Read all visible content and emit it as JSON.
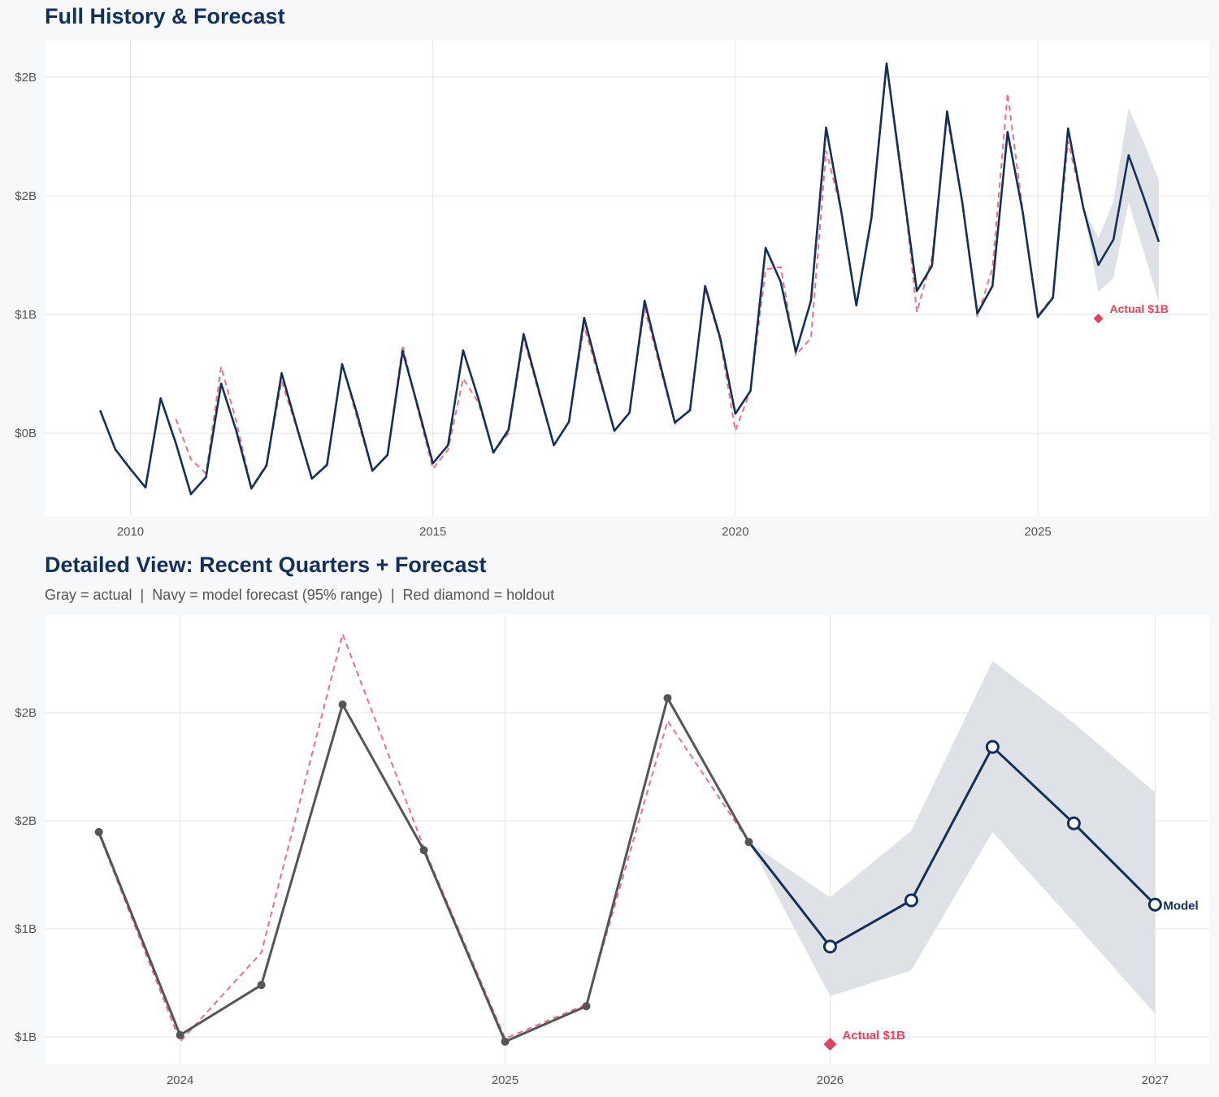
{
  "colors": {
    "navy": "#12305a",
    "red": "#e0435e",
    "gray": "#555555",
    "band": "#dce0e6",
    "grid": "#e3e3e3"
  },
  "chart_data": [
    {
      "type": "line",
      "title": "Full History & Forecast",
      "xlim": [
        "2008-08-15",
        "2027-11-15"
      ],
      "ylim": [
        0.151,
        2.154
      ],
      "y_unit": "$B",
      "grid": true,
      "x_ticks": [
        {
          "value": "2010-01-01",
          "label": "2010"
        },
        {
          "value": "2015-01-01",
          "label": "2015"
        },
        {
          "value": "2020-01-01",
          "label": "2020"
        },
        {
          "value": "2025-01-01",
          "label": "2025"
        }
      ],
      "y_ticks": [
        {
          "value": 0.5,
          "label": "$0B"
        },
        {
          "value": 1.0,
          "label": "$1B"
        },
        {
          "value": 1.5,
          "label": "$2B"
        },
        {
          "value": 2.0,
          "label": "$2B"
        }
      ],
      "actual": {
        "start": "2009-07-01",
        "values": [
          0.596,
          0.432,
          0.349,
          0.271,
          0.647,
          0.459,
          0.243,
          0.315,
          0.709,
          0.51,
          0.267,
          0.363,
          0.753,
          0.527,
          0.308,
          0.366,
          0.791,
          0.579,
          0.342,
          0.408,
          0.846,
          0.613,
          0.373,
          0.449,
          0.849,
          0.647,
          0.418,
          0.514,
          0.918,
          0.682,
          0.449,
          0.548,
          0.986,
          0.743,
          0.51,
          0.586,
          1.058,
          0.798,
          0.545,
          0.596,
          1.12,
          0.901,
          0.582,
          0.678,
          1.281,
          1.137,
          0.842,
          1.058,
          1.788,
          1.435,
          1.038,
          1.408,
          2.058,
          1.575,
          1.099,
          1.205,
          1.856,
          1.474,
          1.004,
          1.12,
          1.769,
          1.432,
          0.989,
          1.071,
          1.784,
          1.451
        ]
      },
      "fitted": {
        "start": "2010-10-01",
        "values": [
          0.56,
          0.39,
          0.33,
          0.78,
          0.55,
          0.27,
          0.37,
          0.72,
          0.52,
          0.31,
          0.37,
          0.79,
          0.56,
          0.34,
          0.41,
          0.87,
          0.6,
          0.35,
          0.43,
          0.73,
          0.63,
          0.42,
          0.5,
          0.9,
          0.67,
          0.45,
          0.55,
          0.95,
          0.73,
          0.51,
          0.59,
          1.03,
          0.78,
          0.54,
          0.6,
          1.11,
          0.89,
          0.51,
          0.68,
          1.19,
          1.2,
          0.83,
          0.9,
          1.69,
          1.44,
          1.04,
          1.4,
          2.05,
          1.6,
          1.01,
          1.24,
          1.83,
          1.47,
          0.99,
          1.195,
          1.932,
          1.438,
          0.996,
          1.075,
          1.731,
          1.451
        ]
      },
      "forecast": {
        "start": "2025-10-01",
        "values": [
          1.451,
          1.209,
          1.316,
          1.671,
          1.494,
          1.306
        ],
        "upper": [
          1.451,
          1.323,
          1.477,
          1.87,
          1.726,
          1.566
        ],
        "lower": [
          1.451,
          1.094,
          1.154,
          1.474,
          1.265,
          1.053
        ]
      },
      "holdout": {
        "date": "2026-01-01",
        "value": 0.983,
        "label": "Actual $1B"
      }
    },
    {
      "type": "line",
      "title": "Detailed View: Recent Quarters + Forecast",
      "subtitle": "Gray = actual  |  Navy = model forecast (95% range)  |  Red diamond = holdout",
      "xlim": [
        "2023-08-01",
        "2027-03-01"
      ],
      "ylim": [
        0.936,
        1.976
      ],
      "y_unit": "$B",
      "grid": true,
      "x_ticks": [
        {
          "value": "2024-01-01",
          "label": "2024"
        },
        {
          "value": "2025-01-01",
          "label": "2025"
        },
        {
          "value": "2026-01-01",
          "label": "2026"
        },
        {
          "value": "2027-01-01",
          "label": "2027"
        }
      ],
      "y_ticks": [
        {
          "value": 1.0,
          "label": "$1B"
        },
        {
          "value": 1.25,
          "label": "$1B"
        },
        {
          "value": 1.5,
          "label": "$2B"
        },
        {
          "value": 1.75,
          "label": "$2B"
        }
      ],
      "actual": {
        "start": "2023-10-01",
        "values": [
          1.474,
          1.004,
          1.12,
          1.769,
          1.432,
          0.989,
          1.071,
          1.784,
          1.451
        ]
      },
      "fitted": {
        "start": "2023-10-01",
        "values": [
          1.47,
          0.989,
          1.195,
          1.932,
          1.438,
          0.996,
          1.075,
          1.731,
          1.451
        ]
      },
      "forecast": {
        "start": "2025-10-01",
        "values": [
          1.451,
          1.209,
          1.316,
          1.671,
          1.494,
          1.306
        ],
        "upper": [
          1.451,
          1.323,
          1.477,
          1.87,
          1.726,
          1.566
        ],
        "lower": [
          1.451,
          1.094,
          1.154,
          1.474,
          1.265,
          1.053
        ],
        "label": "Model"
      },
      "holdout": {
        "date": "2026-01-01",
        "value": 0.983,
        "label": "Actual $1B"
      }
    }
  ]
}
